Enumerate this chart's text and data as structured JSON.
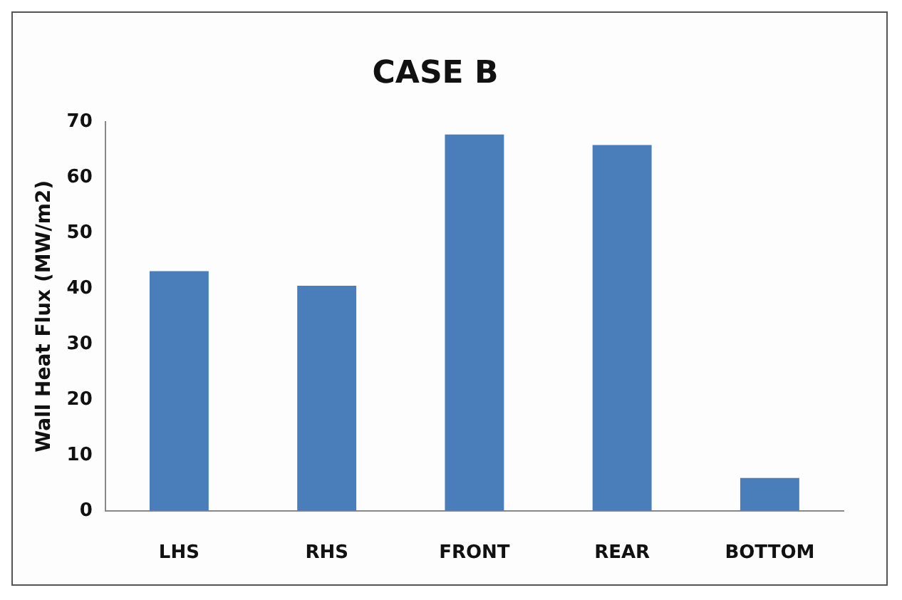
{
  "chart_data": {
    "type": "bar",
    "title": "CASE B",
    "ylabel": "Wall Heat Flux (MW/m2)",
    "categories": [
      "LHS",
      "RHS",
      "FRONT",
      "REAR",
      "BOTTOM"
    ],
    "values": [
      43.1,
      40.5,
      67.7,
      65.8,
      5.9
    ],
    "color": "#4a7ebb",
    "ylim": [
      0,
      70
    ],
    "yticks": [
      0,
      10,
      20,
      30,
      40,
      50,
      60,
      70
    ],
    "grid": false,
    "legend": false
  }
}
